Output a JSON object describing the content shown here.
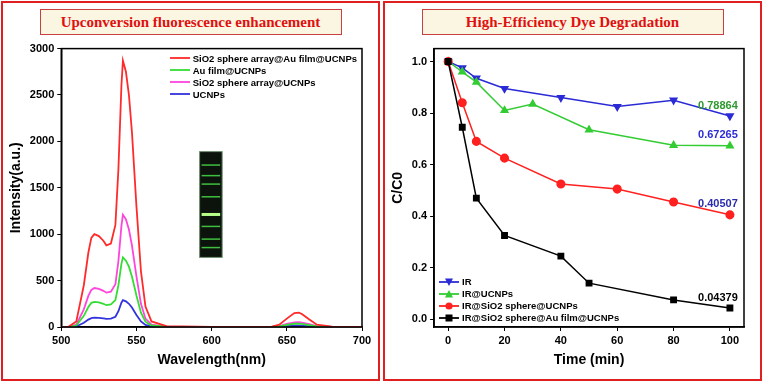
{
  "chart_data": [
    {
      "type": "line",
      "title": "Upconversion fluorescence enhancement",
      "x_label": "Wavelength(nm)",
      "y_label": "Intensity(a.u.)",
      "x": [
        500,
        505,
        510,
        515,
        518,
        520,
        522,
        525,
        528,
        530,
        533,
        536,
        538,
        540,
        541,
        543,
        545,
        547,
        550,
        553,
        556,
        560,
        570,
        600,
        640,
        645,
        650,
        655,
        658,
        660,
        665,
        670,
        680,
        700
      ],
      "series": [
        {
          "name": "SiO2 sphere array@Au film@UCNPs",
          "color": "#ff2a2a",
          "values": [
            0,
            5,
            60,
            450,
            800,
            960,
            1000,
            980,
            930,
            880,
            900,
            1100,
            1700,
            2600,
            2870,
            2750,
            2500,
            2100,
            1300,
            600,
            220,
            60,
            10,
            0,
            5,
            25,
            90,
            150,
            155,
            140,
            80,
            25,
            5,
            0
          ]
        },
        {
          "name": "Au film@UCNPs",
          "color": "#33dd33",
          "values": [
            0,
            1,
            16,
            120,
            215,
            260,
            270,
            265,
            250,
            235,
            243,
            290,
            450,
            680,
            750,
            715,
            650,
            545,
            340,
            155,
            57,
            16,
            3,
            0,
            1,
            6,
            22,
            35,
            36,
            33,
            20,
            7,
            1,
            0
          ]
        },
        {
          "name": "SiO2 sphere array@UCNPs",
          "color": "#ff44dd",
          "values": [
            0,
            2,
            25,
            190,
            335,
            400,
            420,
            410,
            390,
            370,
            380,
            460,
            710,
            1090,
            1210,
            1160,
            1050,
            880,
            545,
            250,
            90,
            25,
            4,
            0,
            2,
            10,
            35,
            50,
            52,
            48,
            30,
            10,
            2,
            0
          ]
        },
        {
          "name": "UCNPs",
          "color": "#3333dd",
          "values": [
            0,
            1,
            6,
            45,
            80,
            96,
            100,
            98,
            93,
            88,
            90,
            110,
            170,
            262,
            290,
            277,
            250,
            210,
            130,
            60,
            22,
            6,
            1,
            0,
            0,
            3,
            8,
            14,
            15,
            13,
            8,
            3,
            1,
            0
          ]
        }
      ],
      "xlim": [
        500,
        700
      ],
      "ylim": [
        0,
        3000
      ],
      "xticks": [
        500,
        550,
        600,
        650,
        700
      ],
      "yticks": [
        0,
        500,
        1000,
        1500,
        2000,
        2500,
        3000
      ],
      "grid": false,
      "legend": "upper right"
    },
    {
      "type": "line",
      "title": "High-Efficiency Dye Degradation",
      "x_label": "Time (min)",
      "y_label": "C/C0",
      "series": [
        {
          "name": "IR@SiO2 sphere@Au film@UCNPs",
          "color": "#000000",
          "marker": "square",
          "x": [
            0,
            5,
            10,
            20,
            40,
            50,
            80,
            100
          ],
          "values": [
            1.0,
            0.745,
            0.47,
            0.325,
            0.245,
            0.14,
            0.075,
            0.04379
          ]
        },
        {
          "name": "IR@SiO2 sphere@UCNPs",
          "color": "#ff2020",
          "marker": "circle",
          "x": [
            0,
            5,
            10,
            20,
            40,
            60,
            80,
            100
          ],
          "values": [
            1.0,
            0.84,
            0.69,
            0.625,
            0.525,
            0.505,
            0.455,
            0.40507
          ]
        },
        {
          "name": "IR@UCNPs",
          "color": "#33cc33",
          "marker": "triangle",
          "x": [
            0,
            5,
            10,
            20,
            30,
            50,
            80,
            100
          ],
          "values": [
            1.0,
            0.96,
            0.92,
            0.81,
            0.835,
            0.735,
            0.675,
            0.67265
          ]
        },
        {
          "name": "IR",
          "color": "#2b2bd6",
          "marker": "triangle-down",
          "x": [
            0,
            5,
            10,
            20,
            40,
            60,
            80,
            100
          ],
          "values": [
            1.0,
            0.975,
            0.935,
            0.895,
            0.86,
            0.825,
            0.85,
            0.78864
          ]
        }
      ],
      "xlim": [
        -5,
        105
      ],
      "ylim": [
        -0.03,
        1.05
      ],
      "xticks": [
        0,
        20,
        40,
        60,
        80,
        100
      ],
      "yticks": [
        {
          "value": 0,
          "label": "0.0"
        },
        {
          "value": 0.2,
          "label": "0.2"
        },
        {
          "value": 0.4,
          "label": "0.4"
        },
        {
          "value": 0.6,
          "label": "0.6"
        },
        {
          "value": 0.8,
          "label": "0.8"
        },
        {
          "value": 1.0,
          "label": "1.0"
        }
      ],
      "grid": false,
      "legend": "lower left",
      "annotations": [
        {
          "text": "0.78864",
          "x": 100,
          "y": 0.78864,
          "color": "#2e9a2e"
        },
        {
          "text": "0.67265",
          "x": 100,
          "y": 0.67265,
          "color": "#2b2bd6"
        },
        {
          "text": "0.40507",
          "x": 100,
          "y": 0.40507,
          "color": "#2b2bb0"
        },
        {
          "text": "0.04379",
          "x": 100,
          "y": 0.04379,
          "color": "#000000"
        }
      ]
    }
  ]
}
